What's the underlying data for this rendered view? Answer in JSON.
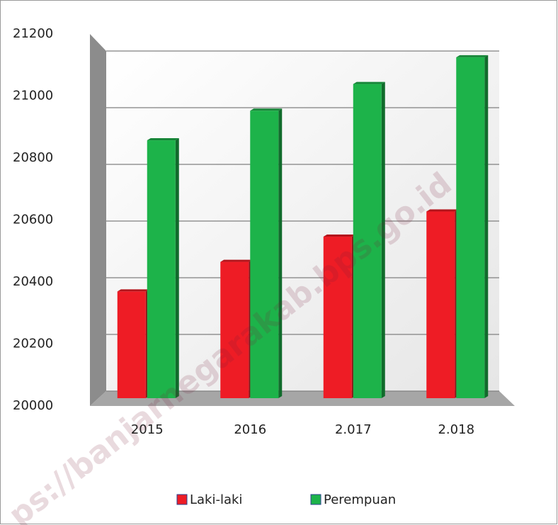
{
  "chart_data": {
    "type": "bar3d",
    "categories": [
      "2015",
      "2016",
      "2.017",
      "2.018"
    ],
    "series": [
      {
        "name": "Laki-laki",
        "color": "#ee1c25",
        "values": [
          20360,
          20460,
          20545,
          20630
        ]
      },
      {
        "name": "Perempuan",
        "color": "#1db34a",
        "values": [
          20870,
          20970,
          21060,
          21150
        ]
      }
    ],
    "ylim": [
      20000,
      21200
    ],
    "yticks": [
      20000,
      20200,
      20400,
      20600,
      20800,
      21000,
      21200
    ],
    "grid": true,
    "legend": "bottom",
    "watermark": "ps://banjarnegarakab.bps.go.id"
  }
}
